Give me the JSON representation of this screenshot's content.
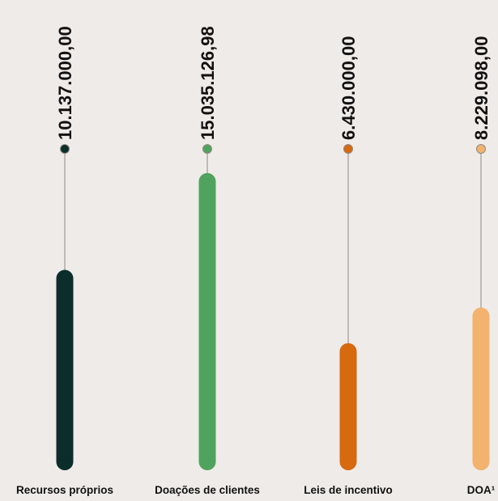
{
  "chart_data": {
    "type": "bar",
    "title": "",
    "xlabel": "",
    "ylabel": "",
    "ylim": [
      0,
      16500000
    ],
    "grid": false,
    "legend": "none",
    "categories": [
      "Recursos próprios",
      "Doações de clientes",
      "Leis de incentivo",
      "DOA¹"
    ],
    "values": [
      10137000.0,
      15035126.98,
      6430000.0,
      8229098.0
    ],
    "value_labels": [
      "10.137.000,00",
      "15.035.126,98",
      "6.430.000,00",
      "8.229.098,00"
    ],
    "colors": [
      "#0b2e2b",
      "#4fa35e",
      "#d7690f",
      "#f3b26d"
    ],
    "connector_color": "#8f8a85",
    "text_color": "#111111"
  }
}
